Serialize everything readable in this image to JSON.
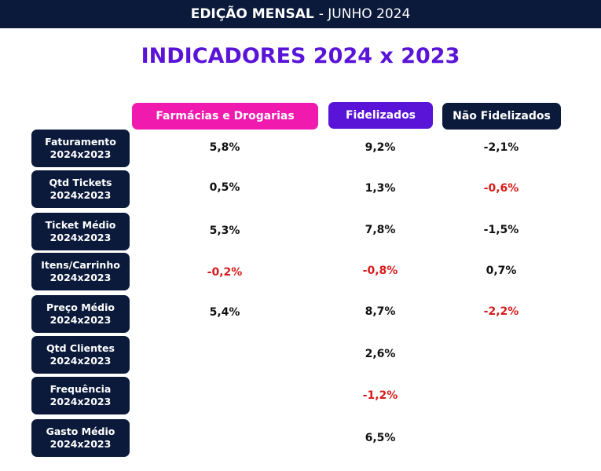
{
  "header": {
    "edition_bold": "EDIÇÃO MENSAL",
    "edition_rest": "- JUNHO 2024"
  },
  "title": "INDICADORES 2024 x 2023",
  "columns": {
    "farmacias": "Farmácias e Drogarias",
    "fidelizados": "Fidelizados",
    "nao_fidelizados": "Não Fidelizados"
  },
  "colors": {
    "navy": "#0b1a3b",
    "magenta": "#f01aae",
    "purple": "#5a14d8",
    "negative": "#d81b1b"
  },
  "rows": [
    {
      "label1": "Faturamento",
      "label2": "2024x2023",
      "farmacias": "5,8%",
      "fidelizados": "9,2%",
      "nao_fidelizados": "-2,1%"
    },
    {
      "label1": "Qtd Tickets",
      "label2": "2024x2023",
      "farmacias": "0,5%",
      "fidelizados": "1,3%",
      "nao_fidelizados": "-0,6%"
    },
    {
      "label1": "Ticket Médio",
      "label2": "2024x2023",
      "farmacias": "5,3%",
      "fidelizados": "7,8%",
      "nao_fidelizados": "-1,5%"
    },
    {
      "label1": "Itens/Carrinho",
      "label2": "2024x2023",
      "farmacias": "-0,2%",
      "fidelizados": "-0,8%",
      "nao_fidelizados": "0,7%"
    },
    {
      "label1": "Preço Médio",
      "label2": "2024x2023",
      "farmacias": "5,4%",
      "fidelizados": "8,7%",
      "nao_fidelizados": "-2,2%"
    },
    {
      "label1": "Qtd Clientes",
      "label2": "2024x2023",
      "farmacias": "",
      "fidelizados": "2,6%",
      "nao_fidelizados": ""
    },
    {
      "label1": "Frequência",
      "label2": "2024x2023",
      "farmacias": "",
      "fidelizados": "-1,2%",
      "nao_fidelizados": ""
    },
    {
      "label1": "Gasto Médio",
      "label2": "2024x2023",
      "farmacias": "",
      "fidelizados": "6,5%",
      "nao_fidelizados": ""
    }
  ]
}
